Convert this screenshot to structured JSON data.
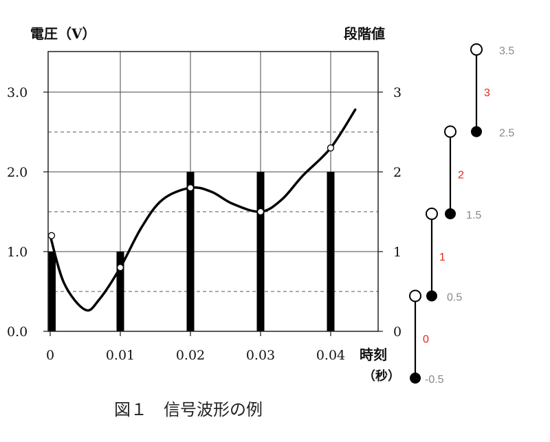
{
  "chart_data": {
    "type": "bar",
    "title": "",
    "caption": "図１　信号波形の例",
    "xlabel": "時刻（秒）",
    "xlabel_line1": "時刻",
    "xlabel_line2": "（秒）",
    "ylabel_left": "電圧（V）",
    "ylabel_right": "段階値",
    "xlim": [
      0,
      0.047
    ],
    "ylim": [
      0,
      3.5
    ],
    "x_ticks": [
      "0",
      "0.01",
      "0.02",
      "0.03",
      "0.04"
    ],
    "x_tick_values": [
      0,
      0.01,
      0.02,
      0.03,
      0.04
    ],
    "y_ticks_left": [
      "0.0",
      "1.0",
      "2.0",
      "3.0"
    ],
    "y_tick_left_values": [
      0,
      1,
      2,
      3
    ],
    "y_ticks_right": [
      "0",
      "1",
      "2",
      "3"
    ],
    "dashed_gridlines": [
      0.5,
      1.5,
      2.5
    ],
    "grid": true,
    "bars": {
      "x": [
        0,
        0.01,
        0.02,
        0.03,
        0.04
      ],
      "values": [
        1,
        1,
        2,
        2,
        2
      ]
    },
    "curve": {
      "x": [
        0,
        0.002,
        0.005,
        0.007,
        0.01,
        0.013,
        0.016,
        0.02,
        0.023,
        0.026,
        0.03,
        0.033,
        0.036,
        0.04,
        0.0435
      ],
      "y": [
        1.2,
        0.6,
        0.27,
        0.4,
        0.8,
        1.3,
        1.65,
        1.8,
        1.75,
        1.6,
        1.5,
        1.65,
        1.95,
        2.3,
        2.78
      ]
    },
    "samples": {
      "x": [
        0,
        0.01,
        0.02,
        0.03,
        0.04
      ],
      "y": [
        1.2,
        0.8,
        1.8,
        1.5,
        2.3
      ]
    },
    "quantization_scale": {
      "levels": [
        "0",
        "1",
        "2",
        "3"
      ],
      "lower": [
        -0.5,
        0.5,
        1.5,
        2.5
      ],
      "upper": [
        0.5,
        1.5,
        2.5,
        3.5
      ],
      "boundary_labels": [
        "-0.5",
        "0.5",
        "1.5",
        "2.5",
        "3.5"
      ],
      "level_color": "#e8231e",
      "boundary_color": "#888888"
    }
  }
}
